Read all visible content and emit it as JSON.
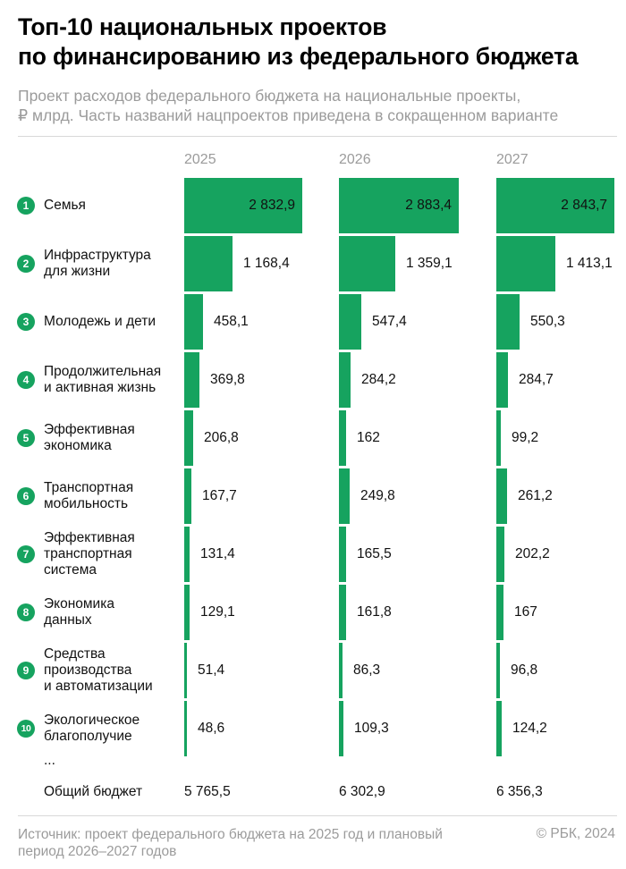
{
  "header": {
    "title_lines": [
      "Топ-10 национальных проектов",
      "по финансированию из федерального бюджета"
    ],
    "subtitle_lines": [
      "Проект расходов федерального бюджета на национальные проекты,",
      "₽ млрд. Часть названий нацпроектов приведена в сокращенном варианте"
    ]
  },
  "colors": {
    "accent": "#16a35f",
    "muted": "#9b9b9b",
    "rule": "#d8d8d8"
  },
  "chart_data": {
    "type": "bar",
    "orientation": "horizontal",
    "unit": "₽ млрд",
    "years": [
      "2025",
      "2026",
      "2027"
    ],
    "projects": [
      {
        "rank": "1",
        "label_lines": [
          "Семья"
        ],
        "values": [
          2832.9,
          2883.4,
          2843.7
        ],
        "value_labels": [
          "2 832,9",
          "2 883,4",
          "2 843,7"
        ]
      },
      {
        "rank": "2",
        "label_lines": [
          "Инфраструктура",
          "для жизни"
        ],
        "values": [
          1168.4,
          1359.1,
          1413.1
        ],
        "value_labels": [
          "1 168,4",
          "1 359,1",
          "1 413,1"
        ]
      },
      {
        "rank": "3",
        "label_lines": [
          "Молодежь и дети"
        ],
        "values": [
          458.1,
          547.4,
          550.3
        ],
        "value_labels": [
          "458,1",
          "547,4",
          "550,3"
        ]
      },
      {
        "rank": "4",
        "label_lines": [
          "Продолжительная",
          "и активная жизнь"
        ],
        "values": [
          369.8,
          284.2,
          284.7
        ],
        "value_labels": [
          "369,8",
          "284,2",
          "284,7"
        ]
      },
      {
        "rank": "5",
        "label_lines": [
          "Эффективная",
          "экономика"
        ],
        "values": [
          206.8,
          162,
          99.2
        ],
        "value_labels": [
          "206,8",
          "162",
          "99,2"
        ]
      },
      {
        "rank": "6",
        "label_lines": [
          "Транспортная",
          "мобильность"
        ],
        "values": [
          167.7,
          249.8,
          261.2
        ],
        "value_labels": [
          "167,7",
          "249,8",
          "261,2"
        ]
      },
      {
        "rank": "7",
        "label_lines": [
          "Эффективная",
          "транспортная",
          "система"
        ],
        "values": [
          131.4,
          165.5,
          202.2
        ],
        "value_labels": [
          "131,4",
          "165,5",
          "202,2"
        ]
      },
      {
        "rank": "8",
        "label_lines": [
          "Экономика",
          "данных"
        ],
        "values": [
          129.1,
          161.8,
          167
        ],
        "value_labels": [
          "129,1",
          "161,8",
          "167"
        ]
      },
      {
        "rank": "9",
        "label_lines": [
          "Средства",
          "производства",
          "и автоматизации"
        ],
        "values": [
          51.4,
          86.3,
          96.8
        ],
        "value_labels": [
          "51,4",
          "86,3",
          "96,8"
        ]
      },
      {
        "rank": "10",
        "label_lines": [
          "Экологическое",
          "благополучие"
        ],
        "values": [
          48.6,
          109.3,
          124.2
        ],
        "value_labels": [
          "48,6",
          "109,3",
          "124,2"
        ]
      }
    ],
    "ellipsis": "...",
    "total": {
      "label": "Общий бюджет",
      "values": [
        5765.5,
        6302.9,
        6356.3
      ],
      "value_labels": [
        "5 765,5",
        "6 302,9",
        "6 356,3"
      ]
    }
  },
  "footer": {
    "source_lines": [
      "Источник: проект федерального бюджета на 2025 год и плановый",
      "период 2026–2027 годов"
    ],
    "credit": "© РБК, 2024"
  }
}
